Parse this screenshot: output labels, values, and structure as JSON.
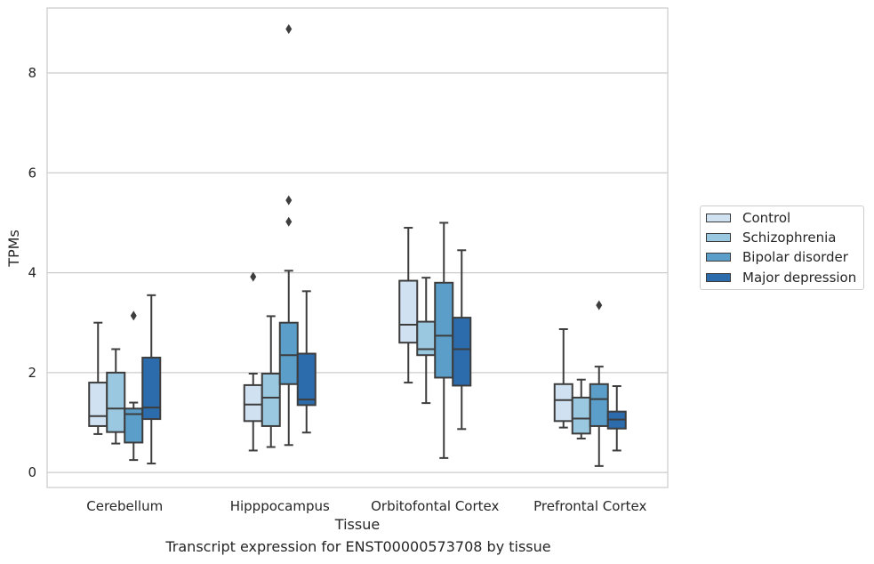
{
  "chart_data": {
    "type": "box",
    "xlabel": "Tissue",
    "ylabel": "TPMs",
    "ylim": [
      -0.3,
      9.3
    ],
    "yticks": [
      0,
      2,
      4,
      6,
      8
    ],
    "grid": "horizontal",
    "legend_position": "right",
    "categories": [
      "Cerebellum",
      "Hipppocampus",
      "Orbitofontal Cortex",
      "Prefrontal Cortex"
    ],
    "series": [
      {
        "name": "Control",
        "color": "#d0e1f2",
        "boxes": [
          {
            "whisker_low": 0.77,
            "q1": 0.93,
            "median": 1.13,
            "q3": 1.8,
            "whisker_high": 3.0,
            "outliers": []
          },
          {
            "whisker_low": 0.44,
            "q1": 1.03,
            "median": 1.36,
            "q3": 1.75,
            "whisker_high": 1.98,
            "outliers": [
              3.92
            ]
          },
          {
            "whisker_low": 1.8,
            "q1": 2.6,
            "median": 2.96,
            "q3": 3.84,
            "whisker_high": 4.9,
            "outliers": []
          },
          {
            "whisker_low": 0.9,
            "q1": 1.03,
            "median": 1.45,
            "q3": 1.77,
            "whisker_high": 2.87,
            "outliers": []
          }
        ]
      },
      {
        "name": "Schizophrenia",
        "color": "#9ac8e0",
        "boxes": [
          {
            "whisker_low": 0.58,
            "q1": 0.81,
            "median": 1.28,
            "q3": 2.0,
            "whisker_high": 2.47,
            "outliers": []
          },
          {
            "whisker_low": 0.51,
            "q1": 0.93,
            "median": 1.5,
            "q3": 1.98,
            "whisker_high": 3.13,
            "outliers": []
          },
          {
            "whisker_low": 1.39,
            "q1": 2.35,
            "median": 2.47,
            "q3": 3.02,
            "whisker_high": 3.9,
            "outliers": []
          },
          {
            "whisker_low": 0.68,
            "q1": 0.78,
            "median": 1.08,
            "q3": 1.5,
            "whisker_high": 1.86,
            "outliers": []
          }
        ]
      },
      {
        "name": "Bipolar disorder",
        "color": "#5a9ec9",
        "boxes": [
          {
            "whisker_low": 0.25,
            "q1": 0.6,
            "median": 1.17,
            "q3": 1.28,
            "whisker_high": 1.4,
            "outliers": [
              3.14
            ]
          },
          {
            "whisker_low": 0.55,
            "q1": 1.77,
            "median": 2.35,
            "q3": 3.0,
            "whisker_high": 4.04,
            "outliers": [
              5.02,
              5.45,
              8.88
            ]
          },
          {
            "whisker_low": 0.29,
            "q1": 1.9,
            "median": 2.74,
            "q3": 3.8,
            "whisker_high": 5.0,
            "outliers": []
          },
          {
            "whisker_low": 0.13,
            "q1": 0.93,
            "median": 1.47,
            "q3": 1.77,
            "whisker_high": 2.12,
            "outliers": [
              3.35
            ]
          }
        ]
      },
      {
        "name": "Major depression",
        "color": "#2c6cad",
        "boxes": [
          {
            "whisker_low": 0.18,
            "q1": 1.07,
            "median": 1.3,
            "q3": 2.3,
            "whisker_high": 3.55,
            "outliers": []
          },
          {
            "whisker_low": 0.8,
            "q1": 1.35,
            "median": 1.46,
            "q3": 2.38,
            "whisker_high": 3.63,
            "outliers": []
          },
          {
            "whisker_low": 0.87,
            "q1": 1.74,
            "median": 2.47,
            "q3": 3.1,
            "whisker_high": 4.45,
            "outliers": []
          },
          {
            "whisker_low": 0.44,
            "q1": 0.88,
            "median": 1.06,
            "q3": 1.22,
            "whisker_high": 1.73,
            "outliers": []
          }
        ]
      }
    ]
  },
  "caption": "Transcript expression for ENST00000573708 by tissue"
}
